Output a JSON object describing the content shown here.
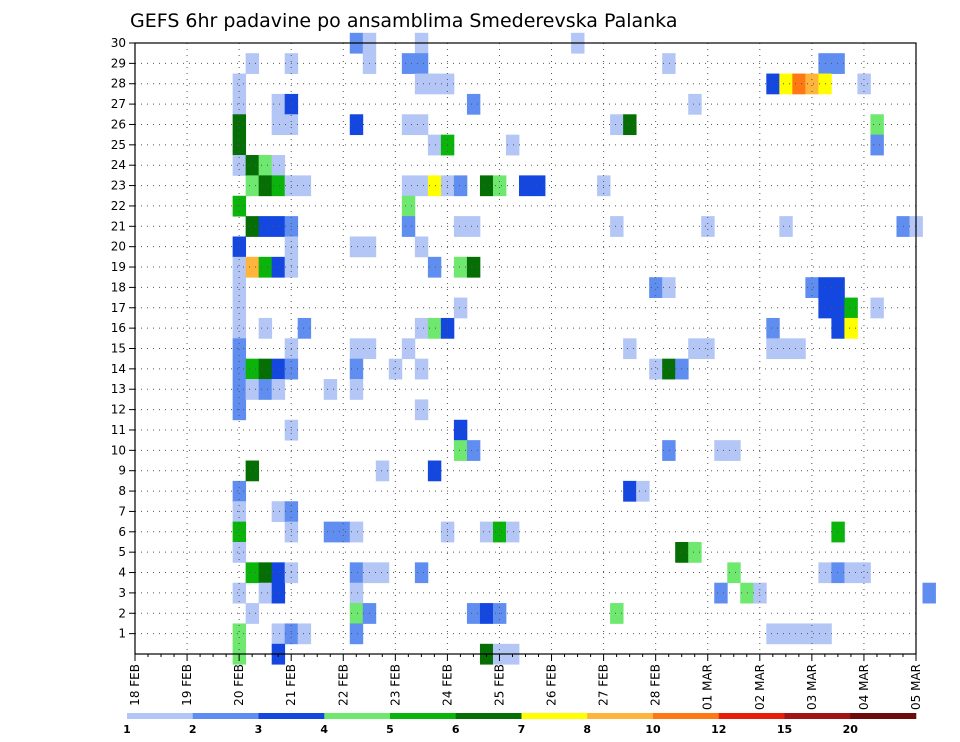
{
  "chart_data": {
    "type": "heatmap",
    "title": "GEFS 6hr padavine po ansamblima Smederevska Palanka",
    "xlabel": "",
    "ylabel": "",
    "y_range": [
      0,
      30
    ],
    "y_ticks": [
      "1",
      "2",
      "3",
      "4",
      "5",
      "6",
      "7",
      "8",
      "9",
      "10",
      "11",
      "12",
      "13",
      "14",
      "15",
      "16",
      "17",
      "18",
      "19",
      "20",
      "21",
      "22",
      "23",
      "24",
      "25",
      "26",
      "27",
      "28",
      "29",
      "30"
    ],
    "x_range": [
      0,
      15
    ],
    "x_ticks": [
      "18 FEB",
      "19 FEB",
      "20 FEB",
      "21 FEB",
      "22 FEB",
      "23 FEB",
      "24 FEB",
      "25 FEB",
      "26 FEB",
      "27 FEB",
      "28 FEB",
      "01 MAR",
      "02 MAR",
      "03 MAR",
      "04 MAR",
      "05 MAR"
    ],
    "grid": true,
    "colors": [
      "#b3c6f5",
      "#5f8ef0",
      "#1446e0",
      "#6ee86e",
      "#0ab40a",
      "#056e05",
      "#ffff00",
      "#ffb43c",
      "#ff7814",
      "#e61e0a",
      "#a01414",
      "#6e0a0a"
    ],
    "bounds": [
      1,
      2,
      3,
      4,
      5,
      6,
      7,
      8,
      10,
      12,
      15,
      20
    ],
    "cells_note": "each cell = [time_step (6h steps from 18 FEB 00Z), member, color_index]",
    "cells": [
      [
        8,
        28,
        0
      ],
      [
        8,
        27,
        0
      ],
      [
        8,
        26,
        5
      ],
      [
        8,
        25,
        5
      ],
      [
        8,
        24,
        0
      ],
      [
        8,
        22,
        4
      ],
      [
        8,
        20,
        2
      ],
      [
        8,
        19,
        0
      ],
      [
        8,
        18,
        0
      ],
      [
        8,
        17,
        0
      ],
      [
        8,
        16,
        0
      ],
      [
        8,
        15,
        1
      ],
      [
        8,
        14,
        1
      ],
      [
        8,
        13,
        1
      ],
      [
        8,
        12,
        1
      ],
      [
        8,
        8,
        1
      ],
      [
        8,
        7,
        0
      ],
      [
        8,
        6,
        4
      ],
      [
        8,
        5,
        0
      ],
      [
        8,
        3,
        0
      ],
      [
        8,
        1,
        3
      ],
      [
        8,
        0,
        3
      ],
      [
        9,
        29,
        0
      ],
      [
        9,
        24,
        5
      ],
      [
        9,
        23,
        3
      ],
      [
        9,
        21,
        5
      ],
      [
        9,
        19,
        7
      ],
      [
        9,
        14,
        4
      ],
      [
        9,
        13,
        0
      ],
      [
        9,
        9,
        5
      ],
      [
        9,
        4,
        4
      ],
      [
        9,
        2,
        0
      ],
      [
        10,
        24,
        3
      ],
      [
        10,
        23,
        5
      ],
      [
        10,
        21,
        2
      ],
      [
        10,
        19,
        4
      ],
      [
        10,
        16,
        0
      ],
      [
        10,
        14,
        5
      ],
      [
        10,
        13,
        1
      ],
      [
        10,
        4,
        5
      ],
      [
        10,
        3,
        0
      ],
      [
        11,
        27,
        0
      ],
      [
        11,
        26,
        0
      ],
      [
        11,
        24,
        0
      ],
      [
        11,
        23,
        4
      ],
      [
        11,
        21,
        2
      ],
      [
        11,
        19,
        2
      ],
      [
        11,
        14,
        2
      ],
      [
        11,
        13,
        0
      ],
      [
        11,
        7,
        0
      ],
      [
        11,
        4,
        2
      ],
      [
        11,
        3,
        2
      ],
      [
        11,
        1,
        0
      ],
      [
        11,
        0,
        2
      ],
      [
        12,
        29,
        0
      ],
      [
        12,
        27,
        2
      ],
      [
        12,
        26,
        0
      ],
      [
        12,
        23,
        0
      ],
      [
        12,
        21,
        1
      ],
      [
        12,
        20,
        0
      ],
      [
        12,
        19,
        0
      ],
      [
        12,
        15,
        0
      ],
      [
        12,
        14,
        1
      ],
      [
        12,
        11,
        0
      ],
      [
        12,
        7,
        1
      ],
      [
        12,
        6,
        0
      ],
      [
        12,
        4,
        0
      ],
      [
        12,
        1,
        1
      ],
      [
        13,
        23,
        0
      ],
      [
        13,
        16,
        1
      ],
      [
        13,
        1,
        0
      ],
      [
        15,
        13,
        0
      ],
      [
        15,
        6,
        1
      ],
      [
        16,
        6,
        1
      ],
      [
        17,
        30,
        1
      ],
      [
        17,
        26,
        2
      ],
      [
        17,
        20,
        0
      ],
      [
        17,
        15,
        0
      ],
      [
        17,
        14,
        1
      ],
      [
        17,
        13,
        0
      ],
      [
        17,
        6,
        0
      ],
      [
        17,
        4,
        1
      ],
      [
        17,
        3,
        0
      ],
      [
        17,
        2,
        3
      ],
      [
        17,
        1,
        1
      ],
      [
        18,
        30,
        0
      ],
      [
        18,
        29,
        0
      ],
      [
        18,
        20,
        0
      ],
      [
        18,
        15,
        0
      ],
      [
        18,
        4,
        0
      ],
      [
        18,
        2,
        1
      ],
      [
        19,
        9,
        0
      ],
      [
        19,
        4,
        0
      ],
      [
        20,
        14,
        0
      ],
      [
        21,
        29,
        1
      ],
      [
        21,
        26,
        0
      ],
      [
        21,
        23,
        0
      ],
      [
        21,
        22,
        3
      ],
      [
        21,
        21,
        1
      ],
      [
        21,
        15,
        0
      ],
      [
        22,
        30,
        0
      ],
      [
        22,
        29,
        1
      ],
      [
        22,
        28,
        0
      ],
      [
        22,
        26,
        0
      ],
      [
        22,
        23,
        0
      ],
      [
        22,
        20,
        0
      ],
      [
        22,
        16,
        0
      ],
      [
        22,
        14,
        0
      ],
      [
        22,
        12,
        0
      ],
      [
        22,
        4,
        1
      ],
      [
        23,
        28,
        0
      ],
      [
        23,
        25,
        0
      ],
      [
        23,
        23,
        6
      ],
      [
        23,
        19,
        1
      ],
      [
        23,
        16,
        3
      ],
      [
        23,
        9,
        2
      ],
      [
        24,
        28,
        0
      ],
      [
        24,
        25,
        4
      ],
      [
        24,
        23,
        0
      ],
      [
        24,
        16,
        2
      ],
      [
        24,
        6,
        0
      ],
      [
        25,
        23,
        1
      ],
      [
        25,
        21,
        0
      ],
      [
        25,
        19,
        3
      ],
      [
        25,
        17,
        0
      ],
      [
        25,
        11,
        2
      ],
      [
        25,
        10,
        3
      ],
      [
        26,
        27,
        1
      ],
      [
        26,
        21,
        0
      ],
      [
        26,
        19,
        5
      ],
      [
        26,
        10,
        1
      ],
      [
        26,
        2,
        1
      ],
      [
        27,
        23,
        5
      ],
      [
        27,
        6,
        0
      ],
      [
        27,
        2,
        2
      ],
      [
        27,
        0,
        5
      ],
      [
        28,
        23,
        3
      ],
      [
        28,
        6,
        4
      ],
      [
        28,
        2,
        1
      ],
      [
        28,
        0,
        0
      ],
      [
        29,
        25,
        0
      ],
      [
        29,
        6,
        0
      ],
      [
        29,
        0,
        0
      ],
      [
        30,
        23,
        2
      ],
      [
        31,
        23,
        2
      ],
      [
        34,
        30,
        0
      ],
      [
        36,
        23,
        0
      ],
      [
        37,
        26,
        0
      ],
      [
        37,
        21,
        0
      ],
      [
        37,
        2,
        3
      ],
      [
        38,
        26,
        5
      ],
      [
        38,
        15,
        0
      ],
      [
        38,
        8,
        2
      ],
      [
        39,
        8,
        0
      ],
      [
        40,
        18,
        1
      ],
      [
        40,
        14,
        0
      ],
      [
        41,
        29,
        0
      ],
      [
        41,
        18,
        0
      ],
      [
        41,
        14,
        5
      ],
      [
        41,
        10,
        1
      ],
      [
        42,
        14,
        1
      ],
      [
        42,
        5,
        5
      ],
      [
        43,
        27,
        0
      ],
      [
        43,
        15,
        0
      ],
      [
        43,
        5,
        3
      ],
      [
        44,
        21,
        0
      ],
      [
        44,
        15,
        0
      ],
      [
        45,
        10,
        0
      ],
      [
        45,
        3,
        1
      ],
      [
        46,
        10,
        0
      ],
      [
        46,
        4,
        3
      ],
      [
        47,
        3,
        3
      ],
      [
        48,
        3,
        0
      ],
      [
        49,
        28,
        2
      ],
      [
        49,
        16,
        1
      ],
      [
        49,
        15,
        0
      ],
      [
        49,
        1,
        0
      ],
      [
        50,
        28,
        6
      ],
      [
        50,
        21,
        0
      ],
      [
        50,
        15,
        0
      ],
      [
        50,
        1,
        0
      ],
      [
        51,
        28,
        8
      ],
      [
        51,
        15,
        0
      ],
      [
        51,
        1,
        0
      ],
      [
        52,
        28,
        7
      ],
      [
        52,
        18,
        1
      ],
      [
        52,
        1,
        0
      ],
      [
        53,
        29,
        1
      ],
      [
        53,
        28,
        6
      ],
      [
        53,
        18,
        2
      ],
      [
        53,
        17,
        2
      ],
      [
        53,
        4,
        0
      ],
      [
        53,
        1,
        0
      ],
      [
        54,
        29,
        1
      ],
      [
        54,
        18,
        2
      ],
      [
        54,
        17,
        2
      ],
      [
        54,
        16,
        2
      ],
      [
        54,
        6,
        4
      ],
      [
        54,
        4,
        1
      ],
      [
        55,
        17,
        4
      ],
      [
        55,
        16,
        6
      ],
      [
        55,
        4,
        0
      ],
      [
        56,
        28,
        0
      ],
      [
        56,
        4,
        0
      ],
      [
        57,
        26,
        3
      ],
      [
        57,
        25,
        1
      ],
      [
        57,
        17,
        0
      ],
      [
        59,
        21,
        1
      ],
      [
        60,
        21,
        0
      ],
      [
        61,
        3,
        1
      ]
    ],
    "legend": {
      "labels": [
        "1",
        "2",
        "3",
        "4",
        "5",
        "6",
        "7",
        "8",
        "10",
        "12",
        "15",
        "20"
      ]
    }
  }
}
